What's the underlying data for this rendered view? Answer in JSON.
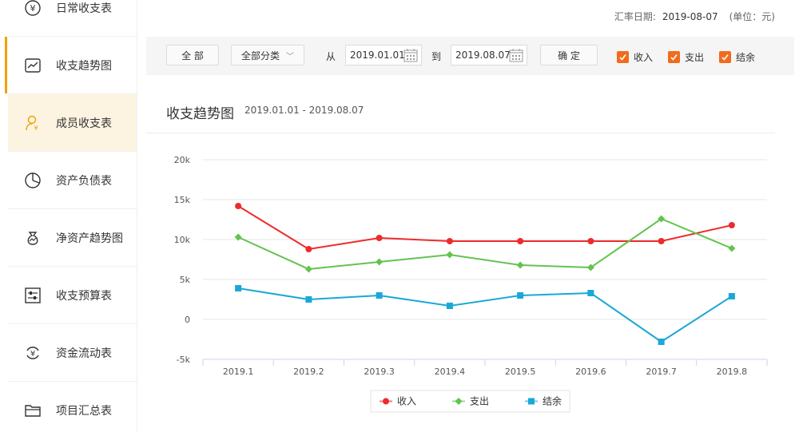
{
  "sidebar": {
    "items": [
      {
        "label": "日常收支表",
        "icon": "yen-circle-icon"
      },
      {
        "label": "收支趋势图",
        "icon": "trend-line-icon"
      },
      {
        "label": "成员收支表",
        "icon": "member-icon"
      },
      {
        "label": "资产负债表",
        "icon": "pie-chart-icon"
      },
      {
        "label": "净资产趋势图",
        "icon": "money-bag-icon"
      },
      {
        "label": "收支预算表",
        "icon": "sliders-icon"
      },
      {
        "label": "资金流动表",
        "icon": "yen-cycle-icon"
      },
      {
        "label": "项目汇总表",
        "icon": "folder-icon"
      }
    ]
  },
  "header": {
    "rate_label": "汇率日期:",
    "rate_date": "2019-08-07",
    "unit": "(单位：元)"
  },
  "toolbar": {
    "all_label": "全 部",
    "category_label": "全部分类",
    "from_label": "从",
    "from_date": "2019.01.01",
    "to_label": "到",
    "to_date": "2019.08.07",
    "confirm_label": "确 定",
    "checks": [
      {
        "label": "收入",
        "checked": true
      },
      {
        "label": "支出",
        "checked": true
      },
      {
        "label": "结余",
        "checked": true
      }
    ],
    "check_color": "#f26b1d"
  },
  "chart_title": "收支趋势图",
  "chart_subtitle": "2019.01.01 - 2019.08.07",
  "chart_data": {
    "type": "line",
    "categories": [
      "2019.1",
      "2019.2",
      "2019.3",
      "2019.4",
      "2019.5",
      "2019.6",
      "2019.7",
      "2019.8"
    ],
    "yticks": [
      "20k",
      "15k",
      "10k",
      "5k",
      "0",
      "-5k"
    ],
    "ylim": [
      -5000,
      20000
    ],
    "grid": true,
    "legend_position": "bottom",
    "series": [
      {
        "name": "收入",
        "color": "#ee2b2b",
        "marker": "circle",
        "values": [
          14200,
          8800,
          10200,
          9800,
          9800,
          9800,
          9800,
          11800
        ]
      },
      {
        "name": "支出",
        "color": "#63c34f",
        "marker": "diamond",
        "values": [
          10300,
          6300,
          7200,
          8100,
          6800,
          6500,
          12600,
          8900
        ]
      },
      {
        "name": "结余",
        "color": "#1aa8d6",
        "marker": "square",
        "values": [
          3900,
          2500,
          3000,
          1700,
          3000,
          3300,
          -2800,
          2900
        ]
      }
    ]
  }
}
